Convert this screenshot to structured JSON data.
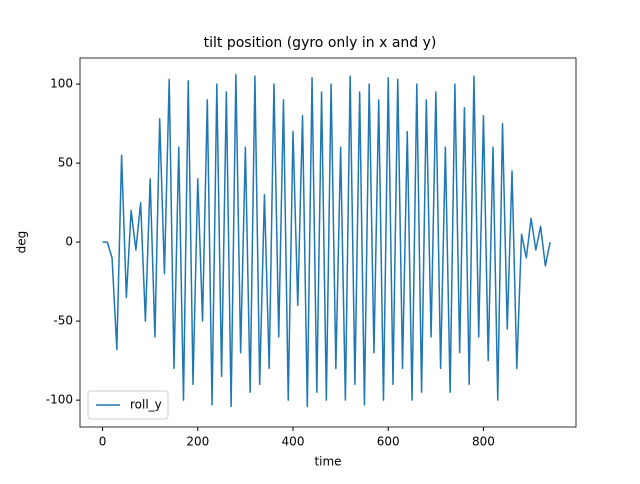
{
  "chart_data": {
    "type": "line",
    "title": "tilt position (gyro only in x and y)",
    "x_label": "time",
    "y_label": "deg",
    "x": [
      0,
      10,
      20,
      30,
      40,
      50,
      60,
      70,
      80,
      90,
      100,
      110,
      120,
      130,
      140,
      150,
      160,
      170,
      180,
      190,
      200,
      210,
      220,
      230,
      240,
      250,
      260,
      270,
      280,
      290,
      300,
      310,
      320,
      330,
      340,
      350,
      360,
      370,
      380,
      390,
      400,
      410,
      420,
      430,
      440,
      450,
      460,
      470,
      480,
      490,
      500,
      510,
      520,
      530,
      540,
      550,
      560,
      570,
      580,
      590,
      600,
      610,
      620,
      630,
      640,
      650,
      660,
      670,
      680,
      690,
      700,
      710,
      720,
      730,
      740,
      750,
      760,
      770,
      780,
      790,
      800,
      810,
      820,
      830,
      840,
      850,
      860,
      870,
      880,
      890,
      900,
      910,
      920,
      930,
      940
    ],
    "series": [
      {
        "name": "roll_y",
        "color": "#1f77b4",
        "values": [
          0,
          0,
          -10,
          -68,
          55,
          -35,
          20,
          -5,
          25,
          -50,
          40,
          -60,
          78,
          -20,
          103,
          -80,
          60,
          -100,
          102,
          -90,
          40,
          -50,
          90,
          -103,
          100,
          -85,
          95,
          -104,
          106,
          -70,
          60,
          -95,
          105,
          -90,
          30,
          -80,
          100,
          -60,
          90,
          -100,
          70,
          -40,
          80,
          -104,
          104,
          -95,
          95,
          -100,
          100,
          -80,
          60,
          -100,
          105,
          -90,
          95,
          -103,
          100,
          -70,
          90,
          -100,
          104,
          -90,
          103,
          -80,
          70,
          -100,
          100,
          -95,
          90,
          -60,
          95,
          -80,
          60,
          -95,
          100,
          -70,
          85,
          -90,
          105,
          -60,
          80,
          -75,
          60,
          -100,
          75,
          -55,
          45,
          -80,
          5,
          -10,
          15,
          -5,
          10,
          -15,
          0
        ]
      }
    ],
    "xlim": [
      -47.35,
      994.35
    ],
    "ylim": [
      -117,
      116.5
    ],
    "xticks": [
      0,
      200,
      400,
      600,
      800
    ],
    "yticks": [
      -100,
      -50,
      0,
      50,
      100
    ],
    "legend": "lower left"
  }
}
